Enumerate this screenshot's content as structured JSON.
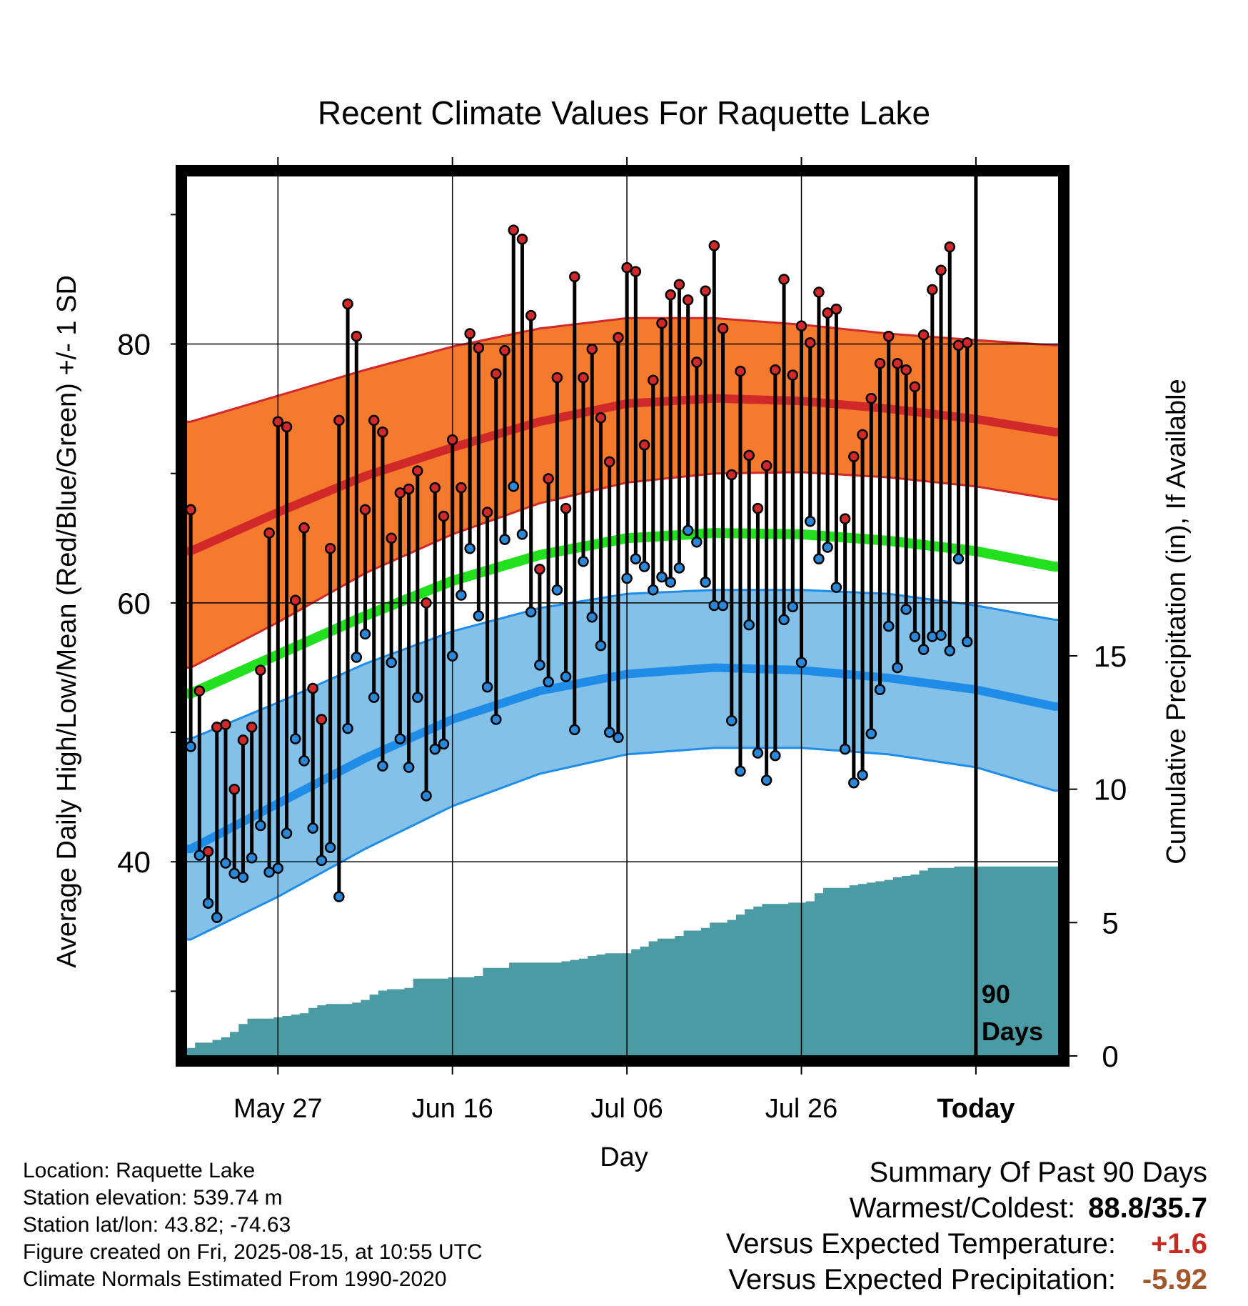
{
  "chart_data": {
    "type": "line",
    "title": "Recent Climate Values For Raquette Lake",
    "xlabel": "Day",
    "ylabel": "Average Daily High/Low/Mean (Red/Blue/Green) +/- 1 SD",
    "y2label": "Cumulative Precipitation (in), If Available",
    "x_tick_labels": [
      "May 27",
      "Jun 16",
      "Jul 06",
      "Jul 26",
      "Today"
    ],
    "x_ticks_day": [
      10,
      30,
      50,
      70,
      90
    ],
    "y_ticks": [
      40,
      60,
      80
    ],
    "ylim": [
      25,
      93
    ],
    "y2_ticks": [
      0,
      5,
      10,
      15
    ],
    "y2lim": [
      0,
      33
    ],
    "xlim": [
      -0.5,
      99.5
    ],
    "today_marker": {
      "day": 90,
      "label_line1": "90",
      "label_line2": "Days"
    },
    "normals": {
      "days": [
        0,
        10,
        20,
        30,
        40,
        50,
        60,
        70,
        80,
        90,
        99
      ],
      "high_mean": [
        64.0,
        67.0,
        69.8,
        72.0,
        74.0,
        75.4,
        75.8,
        75.6,
        75.0,
        74.2,
        73.2
      ],
      "high_plus_sd": [
        74.0,
        76.0,
        78.0,
        79.8,
        81.2,
        82.0,
        82.0,
        81.5,
        80.8,
        80.3,
        79.9
      ],
      "high_minus_sd": [
        55.0,
        58.5,
        62.3,
        65.3,
        67.7,
        69.3,
        70.0,
        70.1,
        69.7,
        69.0,
        68.0
      ],
      "mean": [
        53.0,
        56.0,
        59.0,
        61.7,
        63.7,
        65.0,
        65.4,
        65.3,
        64.8,
        64.0,
        62.8
      ],
      "low_mean": [
        41.0,
        44.5,
        48.0,
        51.0,
        53.2,
        54.5,
        55.0,
        54.8,
        54.2,
        53.3,
        52.0
      ],
      "low_plus_sd": [
        49.5,
        52.3,
        55.3,
        57.8,
        59.6,
        60.7,
        61.0,
        61.0,
        60.7,
        59.8,
        58.7
      ],
      "low_minus_sd": [
        34.0,
        37.3,
        41.0,
        44.3,
        46.8,
        48.3,
        48.8,
        48.8,
        48.3,
        47.3,
        45.5
      ]
    },
    "daily_high": [
      67.2,
      53.2,
      40.8,
      50.4,
      50.6,
      45.6,
      49.4,
      50.4,
      54.8,
      65.4,
      74.0,
      73.6,
      60.2,
      65.8,
      53.4,
      51.0,
      64.2,
      74.1,
      83.1,
      80.6,
      67.2,
      74.1,
      73.2,
      65.0,
      68.5,
      68.8,
      70.2,
      60.0,
      68.9,
      66.7,
      72.6,
      68.9,
      80.8,
      79.7,
      67.0,
      77.7,
      79.5,
      88.8,
      88.1,
      82.2,
      62.6,
      69.6,
      77.4,
      67.3,
      85.2,
      77.4,
      79.6,
      74.3,
      70.9,
      80.5,
      85.9,
      85.6,
      72.2,
      77.2,
      81.6,
      83.8,
      84.6,
      83.4,
      78.6,
      84.1,
      87.6,
      81.2,
      69.9,
      77.9,
      71.4,
      67.3,
      70.6,
      78.0,
      85.0,
      77.6,
      81.4,
      80.1,
      84.0,
      82.4,
      82.7,
      66.5,
      71.3,
      73.0,
      75.8,
      78.5,
      80.6,
      78.5,
      78.0,
      76.7,
      80.7,
      84.2,
      85.7,
      87.5,
      79.9,
      80.1
    ],
    "daily_low": [
      48.9,
      40.5,
      36.8,
      35.7,
      39.9,
      39.1,
      38.8,
      40.3,
      42.8,
      39.2,
      39.5,
      42.2,
      49.5,
      47.8,
      42.6,
      40.1,
      41.1,
      37.3,
      50.3,
      55.8,
      57.6,
      52.7,
      47.4,
      55.4,
      49.5,
      47.3,
      52.7,
      45.1,
      48.7,
      49.1,
      55.9,
      60.6,
      64.2,
      59.0,
      53.5,
      51.0,
      64.9,
      69.0,
      65.3,
      59.3,
      55.2,
      53.9,
      61.0,
      54.3,
      50.2,
      63.2,
      58.9,
      56.7,
      50.0,
      49.6,
      61.9,
      63.4,
      62.8,
      61.0,
      62.0,
      61.6,
      62.7,
      65.6,
      64.7,
      61.6,
      59.8,
      59.8,
      50.9,
      47.0,
      58.3,
      48.4,
      46.3,
      48.2,
      58.7,
      59.7,
      55.4,
      66.3,
      63.4,
      64.3,
      61.2,
      48.7,
      46.1,
      46.7,
      49.9,
      53.3,
      58.2,
      55.0,
      59.5,
      57.4,
      56.4,
      57.4,
      57.5,
      56.3,
      63.4,
      57.0
    ],
    "cumulative_precip": [
      0.3,
      0.5,
      0.5,
      0.6,
      0.7,
      0.9,
      1.2,
      1.4,
      1.4,
      1.4,
      1.45,
      1.5,
      1.55,
      1.6,
      1.8,
      1.9,
      1.95,
      1.95,
      1.95,
      2.0,
      2.1,
      2.3,
      2.45,
      2.5,
      2.5,
      2.55,
      2.9,
      2.9,
      2.9,
      2.9,
      2.95,
      2.95,
      2.95,
      3.0,
      3.3,
      3.3,
      3.3,
      3.5,
      3.5,
      3.5,
      3.5,
      3.5,
      3.5,
      3.55,
      3.6,
      3.65,
      3.75,
      3.8,
      3.85,
      3.85,
      3.85,
      4.0,
      4.1,
      4.3,
      4.4,
      4.4,
      4.5,
      4.7,
      4.7,
      4.8,
      5.0,
      5.0,
      5.1,
      5.3,
      5.5,
      5.6,
      5.7,
      5.7,
      5.7,
      5.75,
      5.75,
      5.8,
      6.1,
      6.3,
      6.3,
      6.3,
      6.4,
      6.45,
      6.5,
      6.55,
      6.6,
      6.7,
      6.75,
      6.8,
      6.95,
      7.05,
      7.05,
      7.05,
      7.1,
      7.1,
      7.1
    ],
    "colors": {
      "high_band": "#f47a2e",
      "high_line": "#d1282a",
      "mean_line": "#22e01e",
      "low_band": "#84c1e8",
      "low_line": "#1f8de8",
      "precip": "#4a9ba3",
      "high_point": "#d1282a",
      "low_point": "#2b88d8"
    },
    "grid": true
  },
  "info": {
    "location": "Location: Raquette Lake",
    "elevation": "Station elevation: 539.74 m",
    "latlon": "Station lat/lon: 43.82; -74.63",
    "created": "Figure created on Fri, 2025-08-15, at 10:55 UTC",
    "normals_period": "Climate Normals Estimated From 1990-2020"
  },
  "summary": {
    "title": "Summary Of Past 90 Days",
    "warmest_coldest_label": "Warmest/Coldest:",
    "warmest_coldest_value": "88.8/35.7",
    "temp_label": "Versus Expected Temperature:",
    "temp_value": "+1.6",
    "temp_color": "#c72a22",
    "precip_label": "Versus Expected Precipitation:",
    "precip_value": "-5.92",
    "precip_color": "#a3562a"
  }
}
